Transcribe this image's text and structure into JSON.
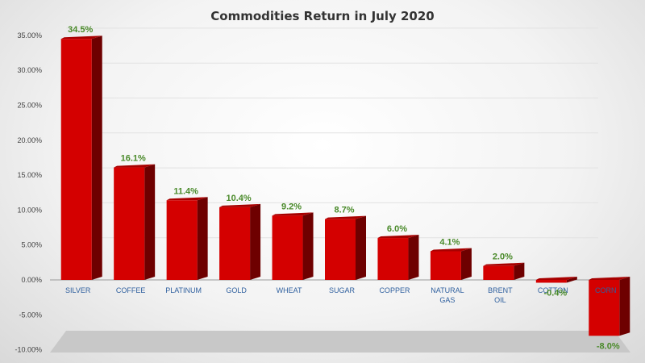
{
  "chart_data": {
    "type": "bar",
    "title": "Commodities Return in July 2020",
    "categories": [
      "SILVER",
      "COFFEE",
      "PLATINUM",
      "GOLD",
      "WHEAT",
      "SUGAR",
      "COPPER",
      "NATURAL GAS",
      "BRENT OIL",
      "COTTON",
      "CORN"
    ],
    "values": [
      34.5,
      16.1,
      11.4,
      10.4,
      9.2,
      8.7,
      6.0,
      4.1,
      2.0,
      -0.4,
      -8.0
    ],
    "data_labels": [
      "34.5%",
      "16.1%",
      "11.4%",
      "10.4%",
      "9.2%",
      "8.7%",
      "6.0%",
      "4.1%",
      "2.0%",
      "-0.4%",
      "-8.0%"
    ],
    "y_ticks": [
      "35.00%",
      "30.00%",
      "25.00%",
      "20.00%",
      "15.00%",
      "10.00%",
      "5.00%",
      "0.00%",
      "-5.00%",
      "-10.00%"
    ],
    "y_tick_values": [
      35,
      30,
      25,
      20,
      15,
      10,
      5,
      0,
      -5,
      -10
    ],
    "ylim": [
      -10,
      35
    ],
    "grid": true,
    "legend": "none",
    "colors": {
      "bar_front": "#d40000",
      "bar_side": "#6e0000",
      "bar_top": "#a80000",
      "data_label": "#4a8a2a",
      "category_label": "#2e5f9e"
    }
  }
}
